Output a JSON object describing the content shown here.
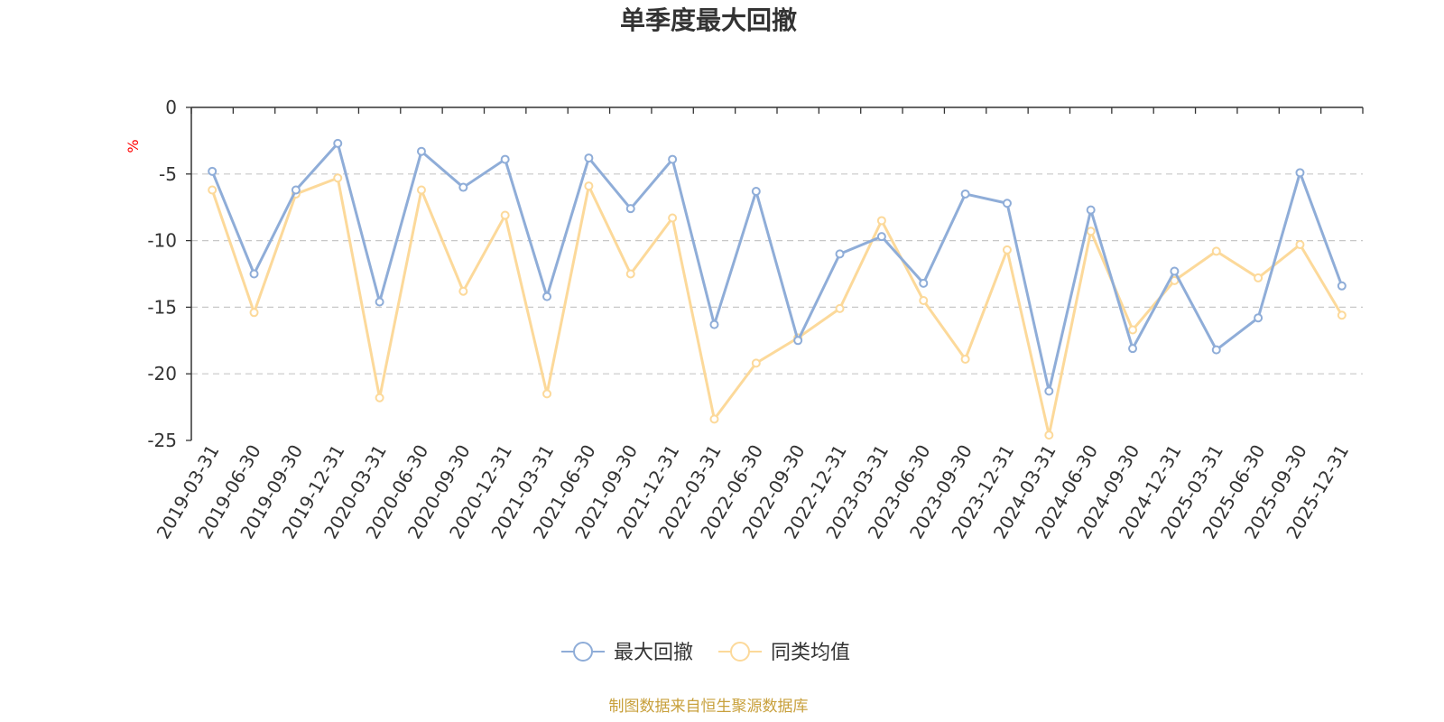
{
  "chart_data": {
    "type": "line",
    "title": "单季度最大回撤",
    "ylabel": "%",
    "ylim": [
      -25,
      0
    ],
    "yticks": [
      0,
      -5,
      -10,
      -15,
      -20,
      -25
    ],
    "grid": true,
    "legend_position": "bottom",
    "categories": [
      "2019-03-31",
      "2019-06-30",
      "2019-09-30",
      "2019-12-31",
      "2020-03-31",
      "2020-06-30",
      "2020-09-30",
      "2020-12-31",
      "2021-03-31",
      "2021-06-30",
      "2021-09-30",
      "2021-12-31",
      "2022-03-31",
      "2022-06-30",
      "2022-09-30",
      "2022-12-31",
      "2023-03-31",
      "2023-06-30",
      "2023-09-30",
      "2023-12-31",
      "2024-03-31",
      "2024-06-30",
      "2024-09-30",
      "2024-12-31",
      "2025-03-31",
      "2025-06-30",
      "2025-09-30",
      "2025-12-31"
    ],
    "series": [
      {
        "name": "最大回撤",
        "color": "#8fadd8",
        "values": [
          -4.8,
          -12.5,
          -6.2,
          -2.7,
          -14.6,
          -3.3,
          -6.0,
          -3.9,
          -14.2,
          -3.8,
          -7.6,
          -3.9,
          -16.3,
          -6.3,
          -17.5,
          -11.0,
          -9.7,
          -13.2,
          -6.5,
          -7.2,
          -21.3,
          -7.7,
          -18.1,
          -12.3,
          -18.2,
          -15.8,
          -4.9,
          -13.4
        ]
      },
      {
        "name": "同类均值",
        "color": "#fcd99a",
        "values": [
          -6.2,
          -15.4,
          -6.5,
          -5.3,
          -21.8,
          -6.2,
          -13.8,
          -8.1,
          -21.5,
          -5.9,
          -12.5,
          -8.3,
          -23.4,
          -19.2,
          -17.3,
          -15.1,
          -8.5,
          -14.5,
          -18.9,
          -10.7,
          -24.6,
          -9.3,
          -16.7,
          -13.0,
          -10.8,
          -12.8,
          -10.3,
          -15.6
        ]
      }
    ]
  },
  "footer": {
    "source": "制图数据来自恒生聚源数据库"
  }
}
